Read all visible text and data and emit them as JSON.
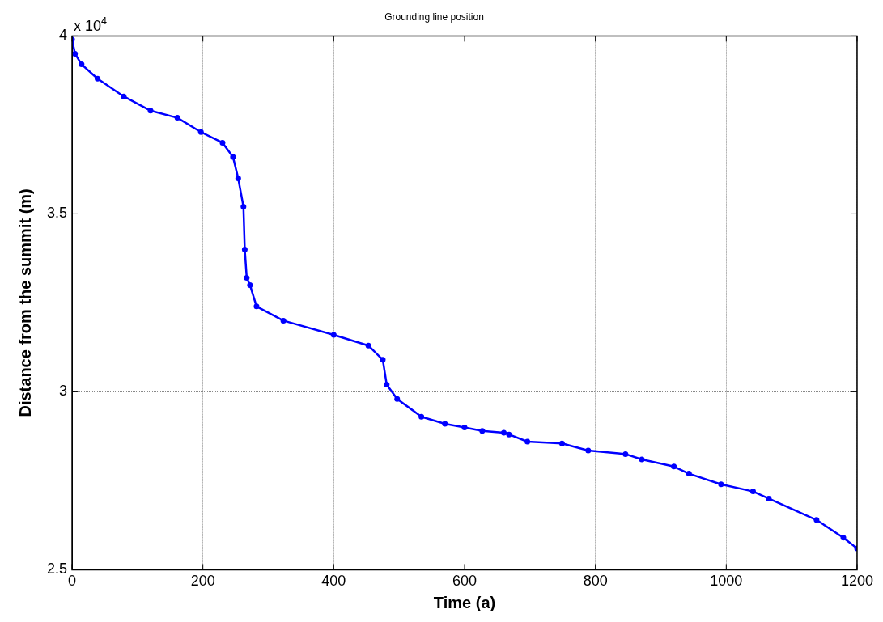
{
  "chart_data": {
    "type": "line",
    "title": "Grounding line position",
    "xlabel": "Time (a)",
    "ylabel": "Distance from the summit (m)",
    "annotations": [
      "x 10$^{4}$"
    ],
    "x": [
      0,
      4.5,
      14.6,
      39,
      79,
      120,
      161,
      197,
      230,
      246,
      254,
      262,
      264,
      267,
      272,
      282,
      323,
      400,
      453,
      475,
      481,
      497,
      534,
      570,
      600,
      627,
      660,
      668,
      696,
      749,
      789,
      846,
      871,
      920,
      943,
      992,
      1041,
      1065,
      1138,
      1179,
      1200
    ],
    "series": [
      {
        "color": "#0000ff",
        "values": [
          3.99,
          3.95,
          3.92,
          3.88,
          3.83,
          3.79,
          3.77,
          3.73,
          3.7,
          3.66,
          3.6,
          3.52,
          3.4,
          3.32,
          3.3,
          3.24,
          3.2,
          3.16,
          3.13,
          3.09,
          3.02,
          2.98,
          2.93,
          2.91,
          2.9,
          2.89,
          2.885,
          2.88,
          2.86,
          2.855,
          2.835,
          2.825,
          2.81,
          2.79,
          2.77,
          2.74,
          2.72,
          2.7,
          2.64,
          2.59,
          2.56
        ]
      }
    ],
    "xlim": [
      0,
      1200
    ],
    "xticks": [
      0,
      200,
      400,
      600,
      800,
      1000,
      1200
    ],
    "ylim": [
      2.5,
      4
    ],
    "yticks": [
      2.5,
      3,
      3.5,
      4
    ],
    "grid": true,
    "legend": false,
    "marker": "circle",
    "line_style": "solid"
  }
}
